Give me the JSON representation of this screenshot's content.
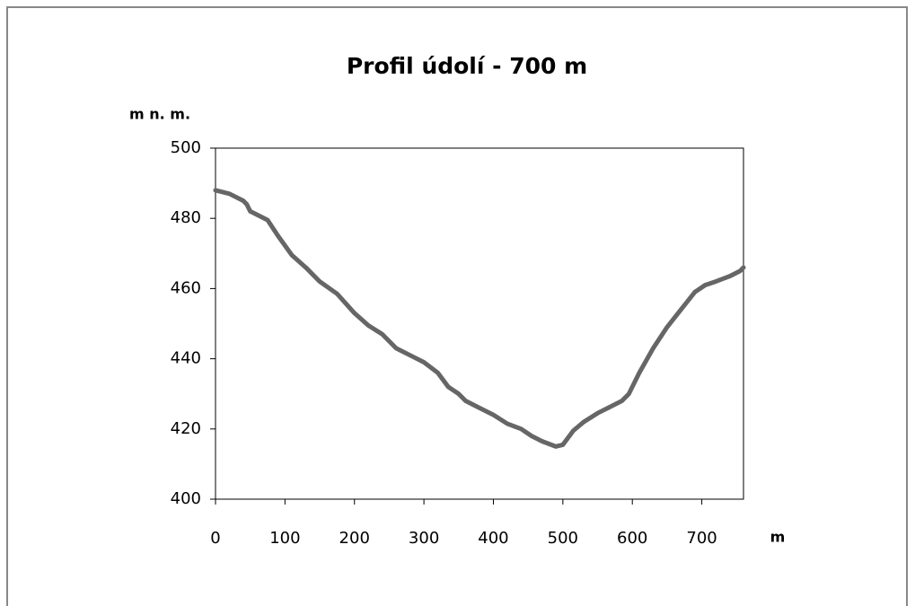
{
  "chart_data": {
    "type": "line",
    "title": "Profil údolí - 700 m",
    "y_label": "m n. m.",
    "x_label": "m",
    "x": [
      0,
      20,
      40,
      45,
      50,
      60,
      75,
      90,
      110,
      130,
      150,
      175,
      200,
      220,
      240,
      260,
      280,
      300,
      320,
      335,
      350,
      360,
      380,
      400,
      420,
      440,
      455,
      470,
      490,
      500,
      515,
      530,
      550,
      565,
      585,
      595,
      610,
      630,
      650,
      670,
      690,
      705,
      720,
      740,
      755,
      760
    ],
    "series": [
      {
        "name": "Profil",
        "color": "#666666",
        "values": [
          488,
          487,
          485,
          484,
          482,
          481,
          479.5,
          475,
          469.5,
          466,
          462,
          458.5,
          453,
          449.5,
          447,
          443,
          441,
          439,
          436,
          432,
          430,
          428,
          426,
          424,
          421.5,
          420,
          418,
          416.5,
          415,
          415.5,
          419.5,
          422,
          424.5,
          426,
          428,
          430,
          436,
          443,
          449,
          454,
          459,
          461,
          462,
          463.5,
          465,
          466
        ]
      }
    ],
    "xlim": [
      0,
      760
    ],
    "xticks": [
      0,
      100,
      200,
      300,
      400,
      500,
      600,
      700
    ],
    "ylim": [
      400,
      500
    ],
    "yticks": [
      400,
      420,
      440,
      460,
      480,
      500
    ],
    "grid": false
  }
}
